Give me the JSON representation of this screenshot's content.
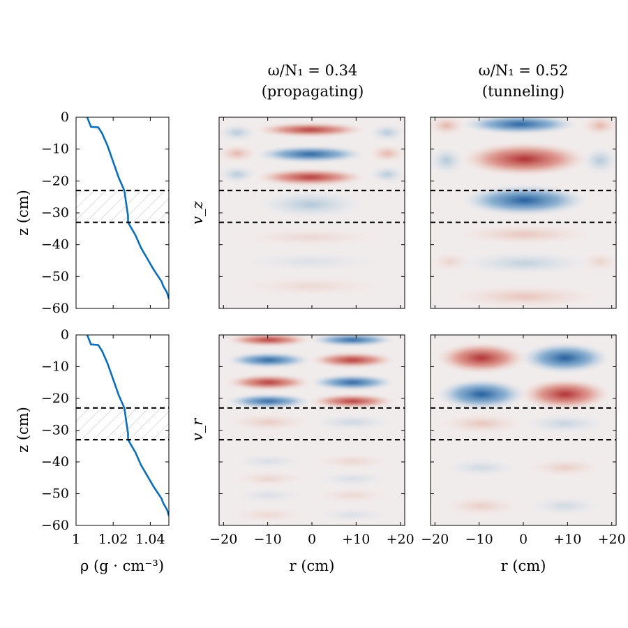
{
  "chart_data": {
    "type": "figure-grid",
    "column_titles": [
      {
        "line1": "ω/N₁ = 0.34",
        "line2": "(propagating)"
      },
      {
        "line1": "ω/N₁ = 0.52",
        "line2": "(tunneling)"
      }
    ],
    "row_labels": [
      "v_z",
      "v_r"
    ],
    "density_profile": {
      "type": "line",
      "xlabel": "ρ (g · cm⁻³)",
      "ylabel": "z (cm)",
      "xlim": [
        1.0,
        1.05
      ],
      "ylim": [
        -60,
        0
      ],
      "xticks": [
        "1",
        "1.02",
        "1.04"
      ],
      "xtick_values": [
        1.0,
        1.02,
        1.04
      ],
      "yticks": [
        "0",
        "−10",
        "−20",
        "−30",
        "−40",
        "−50",
        "−60"
      ],
      "ytick_values": [
        0,
        -10,
        -20,
        -30,
        -40,
        -50,
        -60
      ],
      "x": [
        1.006,
        1.008,
        1.012,
        1.014,
        1.017,
        1.02,
        1.023,
        1.026,
        1.027,
        1.028,
        1.028,
        1.03,
        1.032,
        1.035,
        1.038,
        1.042,
        1.046,
        1.047,
        1.049,
        1.05
      ],
      "z": [
        0,
        -3,
        -3.2,
        -5,
        -9,
        -14,
        -19,
        -23,
        -27,
        -31,
        -33,
        -35,
        -37,
        -41,
        -44,
        -48,
        -51.5,
        -53,
        -55,
        -57
      ],
      "interface_lines_z": [
        -23,
        -33
      ],
      "hatched_layer": [
        -33,
        -23
      ]
    },
    "field_panels": {
      "xlabel": "r (cm)",
      "xlim": [
        -21,
        21
      ],
      "ylim": [
        -60,
        0
      ],
      "xticks": [
        "−20",
        "−10",
        "0",
        "+10",
        "+20"
      ],
      "xtick_values": [
        -20,
        -10,
        0,
        10,
        20
      ],
      "interface_lines_z": [
        -23,
        -33
      ],
      "colormap": "blue–white–red (diverging)"
    }
  }
}
